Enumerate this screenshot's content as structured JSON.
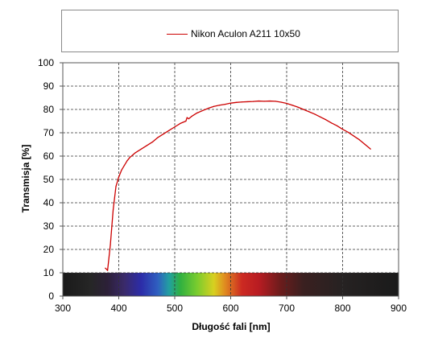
{
  "chart_data": {
    "type": "line",
    "title": "",
    "xlabel": "Długość fali [nm]",
    "ylabel": "Transmisja [%]",
    "xlim": [
      300,
      900
    ],
    "ylim": [
      0,
      100
    ],
    "x_ticks": [
      300,
      400,
      500,
      600,
      700,
      800,
      900
    ],
    "y_ticks": [
      0,
      10,
      20,
      30,
      40,
      50,
      60,
      70,
      80,
      90,
      100
    ],
    "grid": true,
    "legend_position": "top",
    "spectrum_band": {
      "y_range": [
        0,
        10
      ],
      "x_range": [
        300,
        900
      ],
      "stops": [
        {
          "x": 300,
          "color": "#1a1a1a"
        },
        {
          "x": 350,
          "color": "#262626"
        },
        {
          "x": 380,
          "color": "#2c2038"
        },
        {
          "x": 410,
          "color": "#3a2a6a"
        },
        {
          "x": 440,
          "color": "#2c2ca8"
        },
        {
          "x": 470,
          "color": "#2f60c0"
        },
        {
          "x": 490,
          "color": "#22a0a0"
        },
        {
          "x": 510,
          "color": "#30b040"
        },
        {
          "x": 540,
          "color": "#7acc2e"
        },
        {
          "x": 570,
          "color": "#d8d020"
        },
        {
          "x": 590,
          "color": "#e08a20"
        },
        {
          "x": 620,
          "color": "#cc2a22"
        },
        {
          "x": 650,
          "color": "#b81c22"
        },
        {
          "x": 690,
          "color": "#6a1c1c"
        },
        {
          "x": 730,
          "color": "#3a2020"
        },
        {
          "x": 800,
          "color": "#262222"
        },
        {
          "x": 900,
          "color": "#1a1a1a"
        }
      ]
    },
    "series": [
      {
        "name": "Nikon Aculon A211 10x50",
        "color": "#cc0000",
        "x": [
          376,
          380,
          385,
          390,
          395,
          400,
          405,
          410,
          415,
          420,
          430,
          440,
          450,
          460,
          470,
          480,
          490,
          500,
          510,
          520,
          522,
          525,
          530,
          540,
          550,
          560,
          570,
          580,
          590,
          600,
          610,
          620,
          630,
          640,
          650,
          660,
          670,
          680,
          690,
          700,
          710,
          720,
          730,
          740,
          750,
          760,
          770,
          780,
          790,
          800,
          810,
          820,
          830,
          840,
          850
        ],
        "values": [
          12,
          11,
          22,
          37,
          47,
          51,
          54,
          56,
          58,
          59.5,
          61.5,
          63,
          64.5,
          66,
          68,
          69.5,
          71,
          72.5,
          74,
          75,
          76.5,
          76,
          77,
          78.5,
          79.5,
          80.5,
          81.3,
          81.8,
          82.2,
          82.7,
          83,
          83.2,
          83.3,
          83.4,
          83.6,
          83.5,
          83.6,
          83.5,
          83.1,
          82.6,
          81.8,
          81,
          80,
          79,
          78,
          76.8,
          75.6,
          74.2,
          73,
          71.5,
          70.2,
          68.6,
          67,
          65,
          63
        ]
      }
    ]
  }
}
